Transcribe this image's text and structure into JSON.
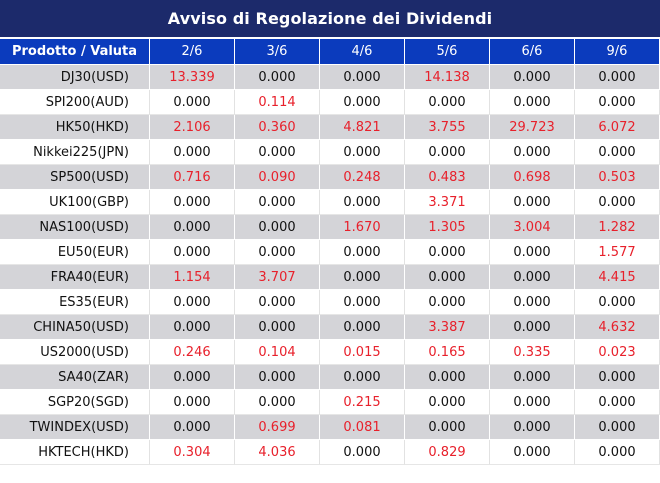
{
  "title": "Avviso di Regolazione dei Dividendi",
  "columns": [
    "Prodotto / Valuta",
    "2/6",
    "3/6",
    "4/6",
    "5/6",
    "6/6",
    "9/6"
  ],
  "rows": [
    {
      "name": "DJ30(USD)",
      "values": [
        "13.339",
        "0.000",
        "0.000",
        "14.138",
        "0.000",
        "0.000"
      ]
    },
    {
      "name": "SPI200(AUD)",
      "values": [
        "0.000",
        "0.114",
        "0.000",
        "0.000",
        "0.000",
        "0.000"
      ]
    },
    {
      "name": "HK50(HKD)",
      "values": [
        "2.106",
        "0.360",
        "4.821",
        "3.755",
        "29.723",
        "6.072"
      ]
    },
    {
      "name": "Nikkei225(JPN)",
      "values": [
        "0.000",
        "0.000",
        "0.000",
        "0.000",
        "0.000",
        "0.000"
      ]
    },
    {
      "name": "SP500(USD)",
      "values": [
        "0.716",
        "0.090",
        "0.248",
        "0.483",
        "0.698",
        "0.503"
      ]
    },
    {
      "name": "UK100(GBP)",
      "values": [
        "0.000",
        "0.000",
        "0.000",
        "3.371",
        "0.000",
        "0.000"
      ]
    },
    {
      "name": "NAS100(USD)",
      "values": [
        "0.000",
        "0.000",
        "1.670",
        "1.305",
        "3.004",
        "1.282"
      ]
    },
    {
      "name": "EU50(EUR)",
      "values": [
        "0.000",
        "0.000",
        "0.000",
        "0.000",
        "0.000",
        "1.577"
      ]
    },
    {
      "name": "FRA40(EUR)",
      "values": [
        "1.154",
        "3.707",
        "0.000",
        "0.000",
        "0.000",
        "4.415"
      ]
    },
    {
      "name": "ES35(EUR)",
      "values": [
        "0.000",
        "0.000",
        "0.000",
        "0.000",
        "0.000",
        "0.000"
      ]
    },
    {
      "name": "CHINA50(USD)",
      "values": [
        "0.000",
        "0.000",
        "0.000",
        "3.387",
        "0.000",
        "4.632"
      ]
    },
    {
      "name": "US2000(USD)",
      "values": [
        "0.246",
        "0.104",
        "0.015",
        "0.165",
        "0.335",
        "0.023"
      ]
    },
    {
      "name": "SA40(ZAR)",
      "values": [
        "0.000",
        "0.000",
        "0.000",
        "0.000",
        "0.000",
        "0.000"
      ]
    },
    {
      "name": "SGP20(SGD)",
      "values": [
        "0.000",
        "0.000",
        "0.215",
        "0.000",
        "0.000",
        "0.000"
      ]
    },
    {
      "name": "TWINDEX(USD)",
      "values": [
        "0.000",
        "0.699",
        "0.081",
        "0.000",
        "0.000",
        "0.000"
      ]
    },
    {
      "name": "HKTECH(HKD)",
      "values": [
        "0.304",
        "4.036",
        "0.000",
        "0.829",
        "0.000",
        "0.000"
      ]
    }
  ],
  "colors": {
    "title_bg": "#1c2a6b",
    "header_bg": "#0b3bbd",
    "row_shaded": "#d4d4d8",
    "nonzero_text": "#e8202b",
    "zero_text": "#111111"
  }
}
